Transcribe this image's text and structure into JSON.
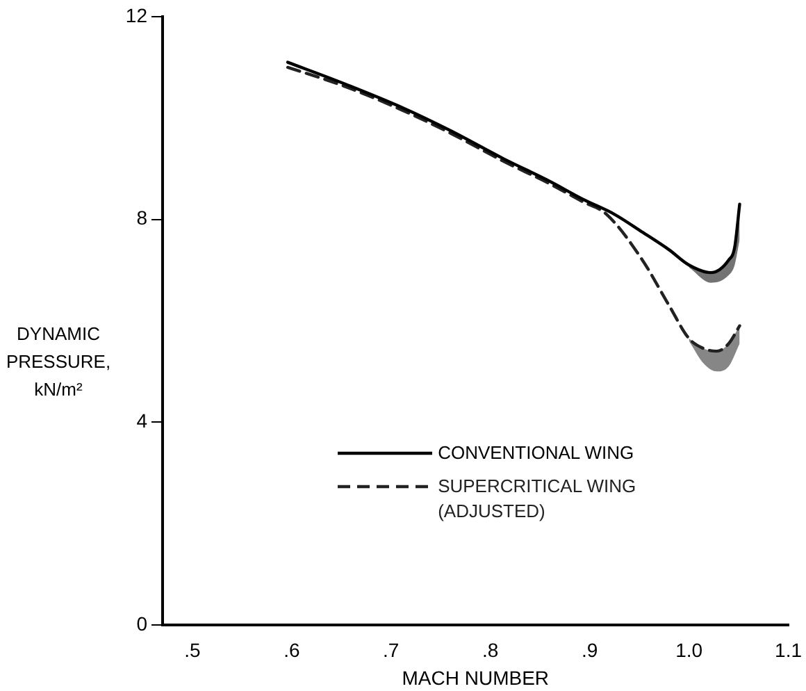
{
  "chart_data": {
    "type": "line",
    "xlabel": "MACH NUMBER",
    "ylabel": "DYNAMIC PRESSURE, kN/m²",
    "xlim": [
      0.47,
      1.1
    ],
    "xticks": [
      {
        "value": 0.5,
        "label": ".5"
      },
      {
        "value": 0.6,
        "label": ".6"
      },
      {
        "value": 0.7,
        "label": ".7"
      },
      {
        "value": 0.8,
        "label": ".8"
      },
      {
        "value": 0.9,
        "label": ".9"
      },
      {
        "value": 1.0,
        "label": "1.0"
      },
      {
        "value": 1.1,
        "label": "1.1"
      }
    ],
    "ylim": [
      0,
      12
    ],
    "yticks": [
      0,
      4,
      8,
      12
    ],
    "grid": false,
    "legend": "bottom",
    "marker": "none",
    "series": [
      {
        "name": "CONVENTIONAL WING",
        "color": "#000000",
        "line_style": "solid",
        "x": [
          0.596,
          0.65,
          0.712,
          0.76,
          0.813,
          0.86,
          0.893,
          0.925,
          0.953,
          0.98,
          1.0,
          1.022,
          1.04,
          1.046,
          1.051
        ],
        "values": [
          11.1,
          10.7,
          10.2,
          9.75,
          9.2,
          8.75,
          8.4,
          8.1,
          7.75,
          7.4,
          7.1,
          6.95,
          7.2,
          7.45,
          8.3
        ],
        "lower": [
          null,
          null,
          null,
          null,
          null,
          null,
          null,
          null,
          null,
          null,
          7.05,
          6.75,
          6.9,
          7.1,
          7.6
        ],
        "upper": [
          null,
          null,
          null,
          null,
          null,
          null,
          null,
          null,
          null,
          null,
          7.1,
          6.95,
          7.2,
          7.45,
          8.3
        ]
      },
      {
        "name": "SUPERCRITICAL WING (ADJUSTED)",
        "color": "#222222",
        "line_style": "dashed",
        "x": [
          0.596,
          0.65,
          0.712,
          0.76,
          0.813,
          0.86,
          0.893,
          0.917,
          0.953,
          0.98,
          1.0,
          1.015,
          1.028,
          1.04,
          1.051
        ],
        "values": [
          11.0,
          10.65,
          10.15,
          9.7,
          9.15,
          8.7,
          8.35,
          8.1,
          7.2,
          6.3,
          5.65,
          5.45,
          5.4,
          5.55,
          5.9
        ],
        "lower": [
          null,
          null,
          null,
          null,
          null,
          null,
          null,
          null,
          null,
          null,
          5.6,
          5.15,
          5.0,
          5.1,
          5.55
        ],
        "upper": [
          null,
          null,
          null,
          null,
          null,
          null,
          null,
          null,
          null,
          null,
          5.65,
          5.45,
          5.4,
          5.55,
          5.9
        ]
      }
    ]
  }
}
